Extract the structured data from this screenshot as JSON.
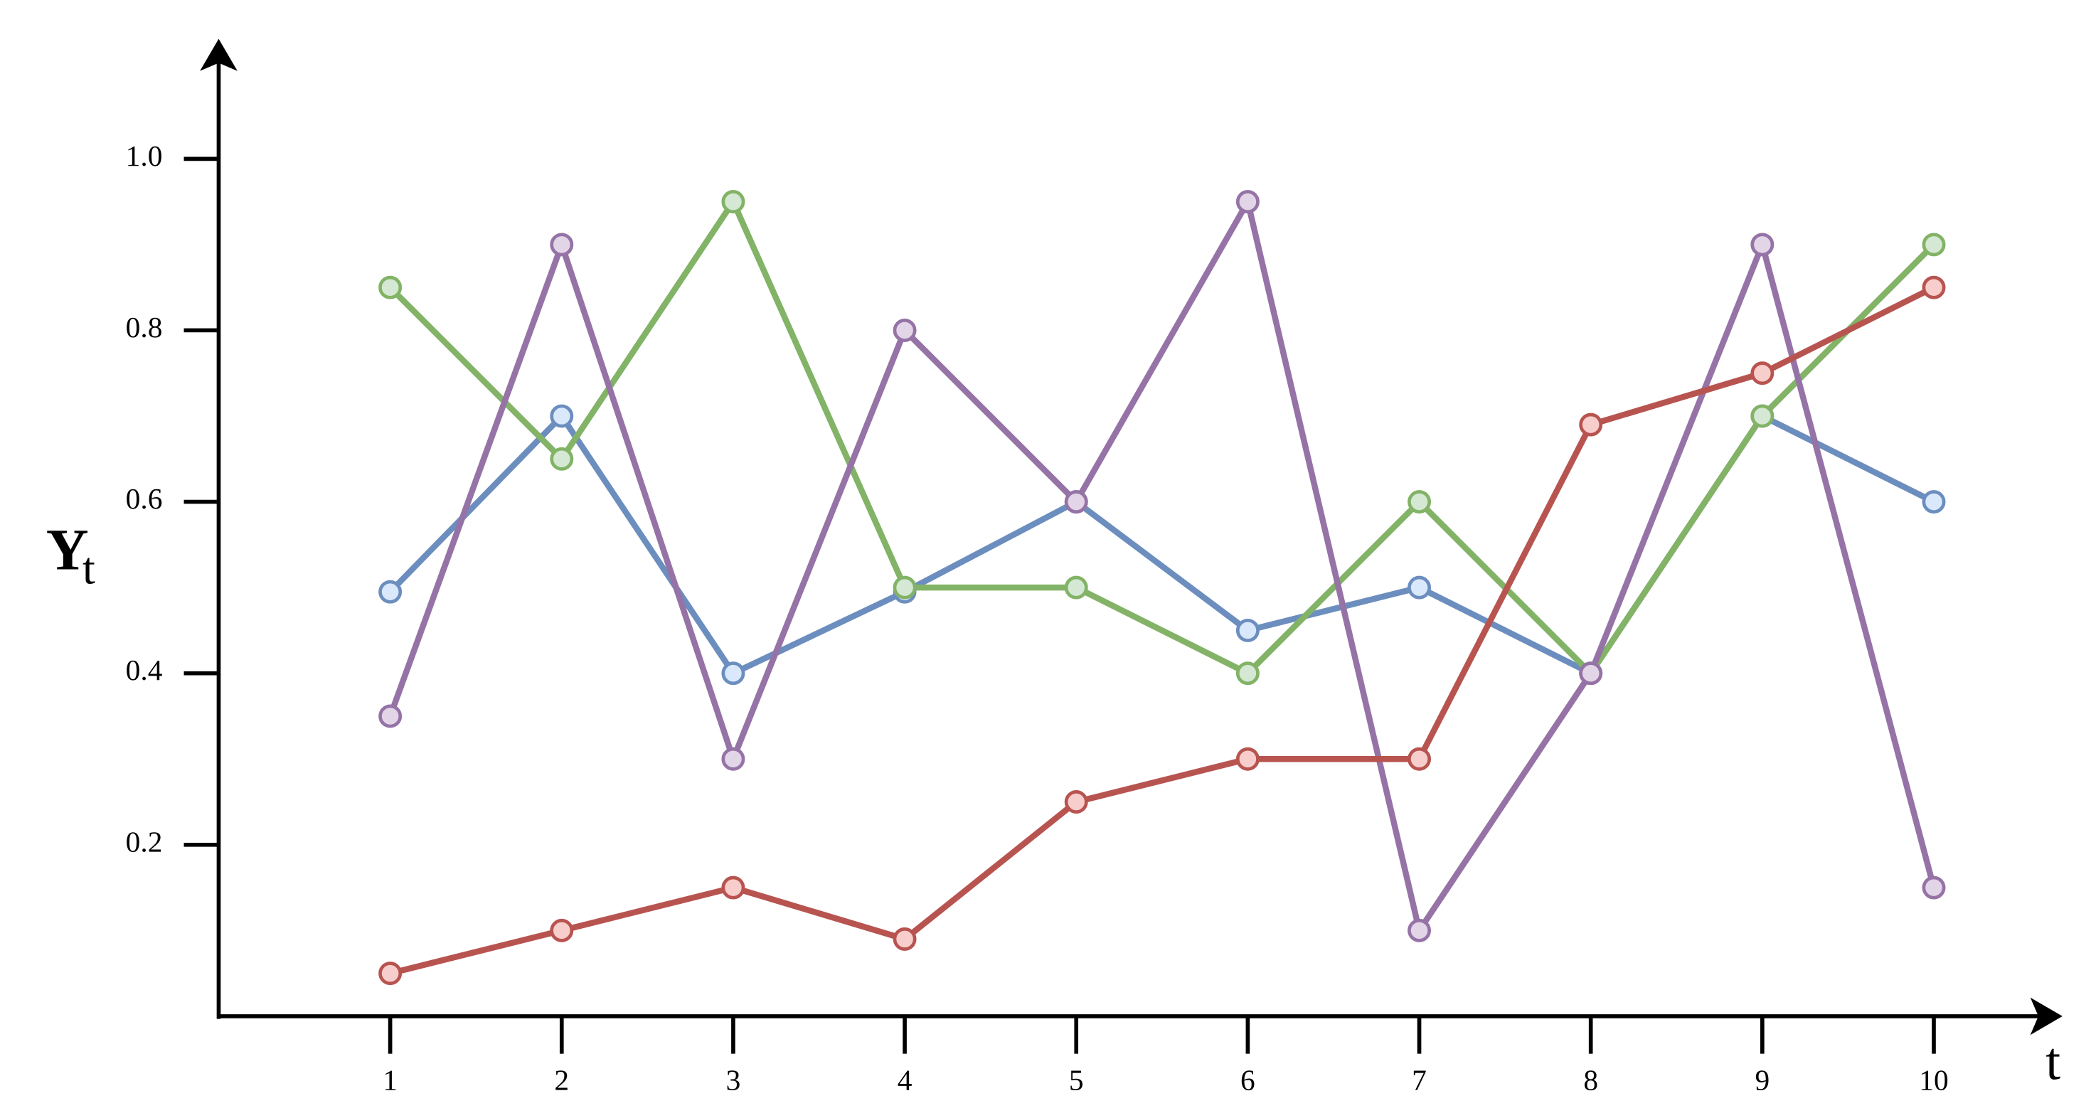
{
  "chart_data": {
    "type": "line",
    "y_label": "Y",
    "y_label_subscript": "t",
    "x_label": "t",
    "x": [
      1,
      2,
      3,
      4,
      5,
      6,
      7,
      8,
      9,
      10
    ],
    "xlim": [
      0,
      10.75
    ],
    "xticks": [
      1,
      2,
      3,
      4,
      5,
      6,
      7,
      8,
      9,
      10
    ],
    "ylim": [
      0,
      1.14
    ],
    "yticks": [
      0.2,
      0.4,
      0.6,
      0.8,
      {
        "value": 1,
        "label": "1.0"
      }
    ],
    "grid": false,
    "series": [
      {
        "color": "#6c8ebf",
        "marker_fill": "#dae8fc",
        "values": [
          0.495,
          0.7,
          0.4,
          0.495,
          0.6,
          0.45,
          0.5,
          0.4,
          0.7,
          0.6
        ]
      },
      {
        "color": "#82b366",
        "marker_fill": "#d5e8d4",
        "values": [
          0.85,
          0.65,
          0.95,
          0.5,
          0.5,
          0.4,
          0.6,
          0.4,
          0.7,
          0.9
        ]
      },
      {
        "color": "#9673a6",
        "marker_fill": "#e1d5e7",
        "values": [
          0.35,
          0.9,
          0.3,
          0.8,
          0.6,
          0.95,
          0.1,
          0.4,
          0.9,
          0.15
        ]
      },
      {
        "color": "#b85450",
        "marker_fill": "#f8cecc",
        "values": [
          0.05,
          0.1,
          0.15,
          0.09,
          0.25,
          0.3,
          0.3,
          0.69,
          0.75,
          0.85
        ]
      }
    ]
  }
}
